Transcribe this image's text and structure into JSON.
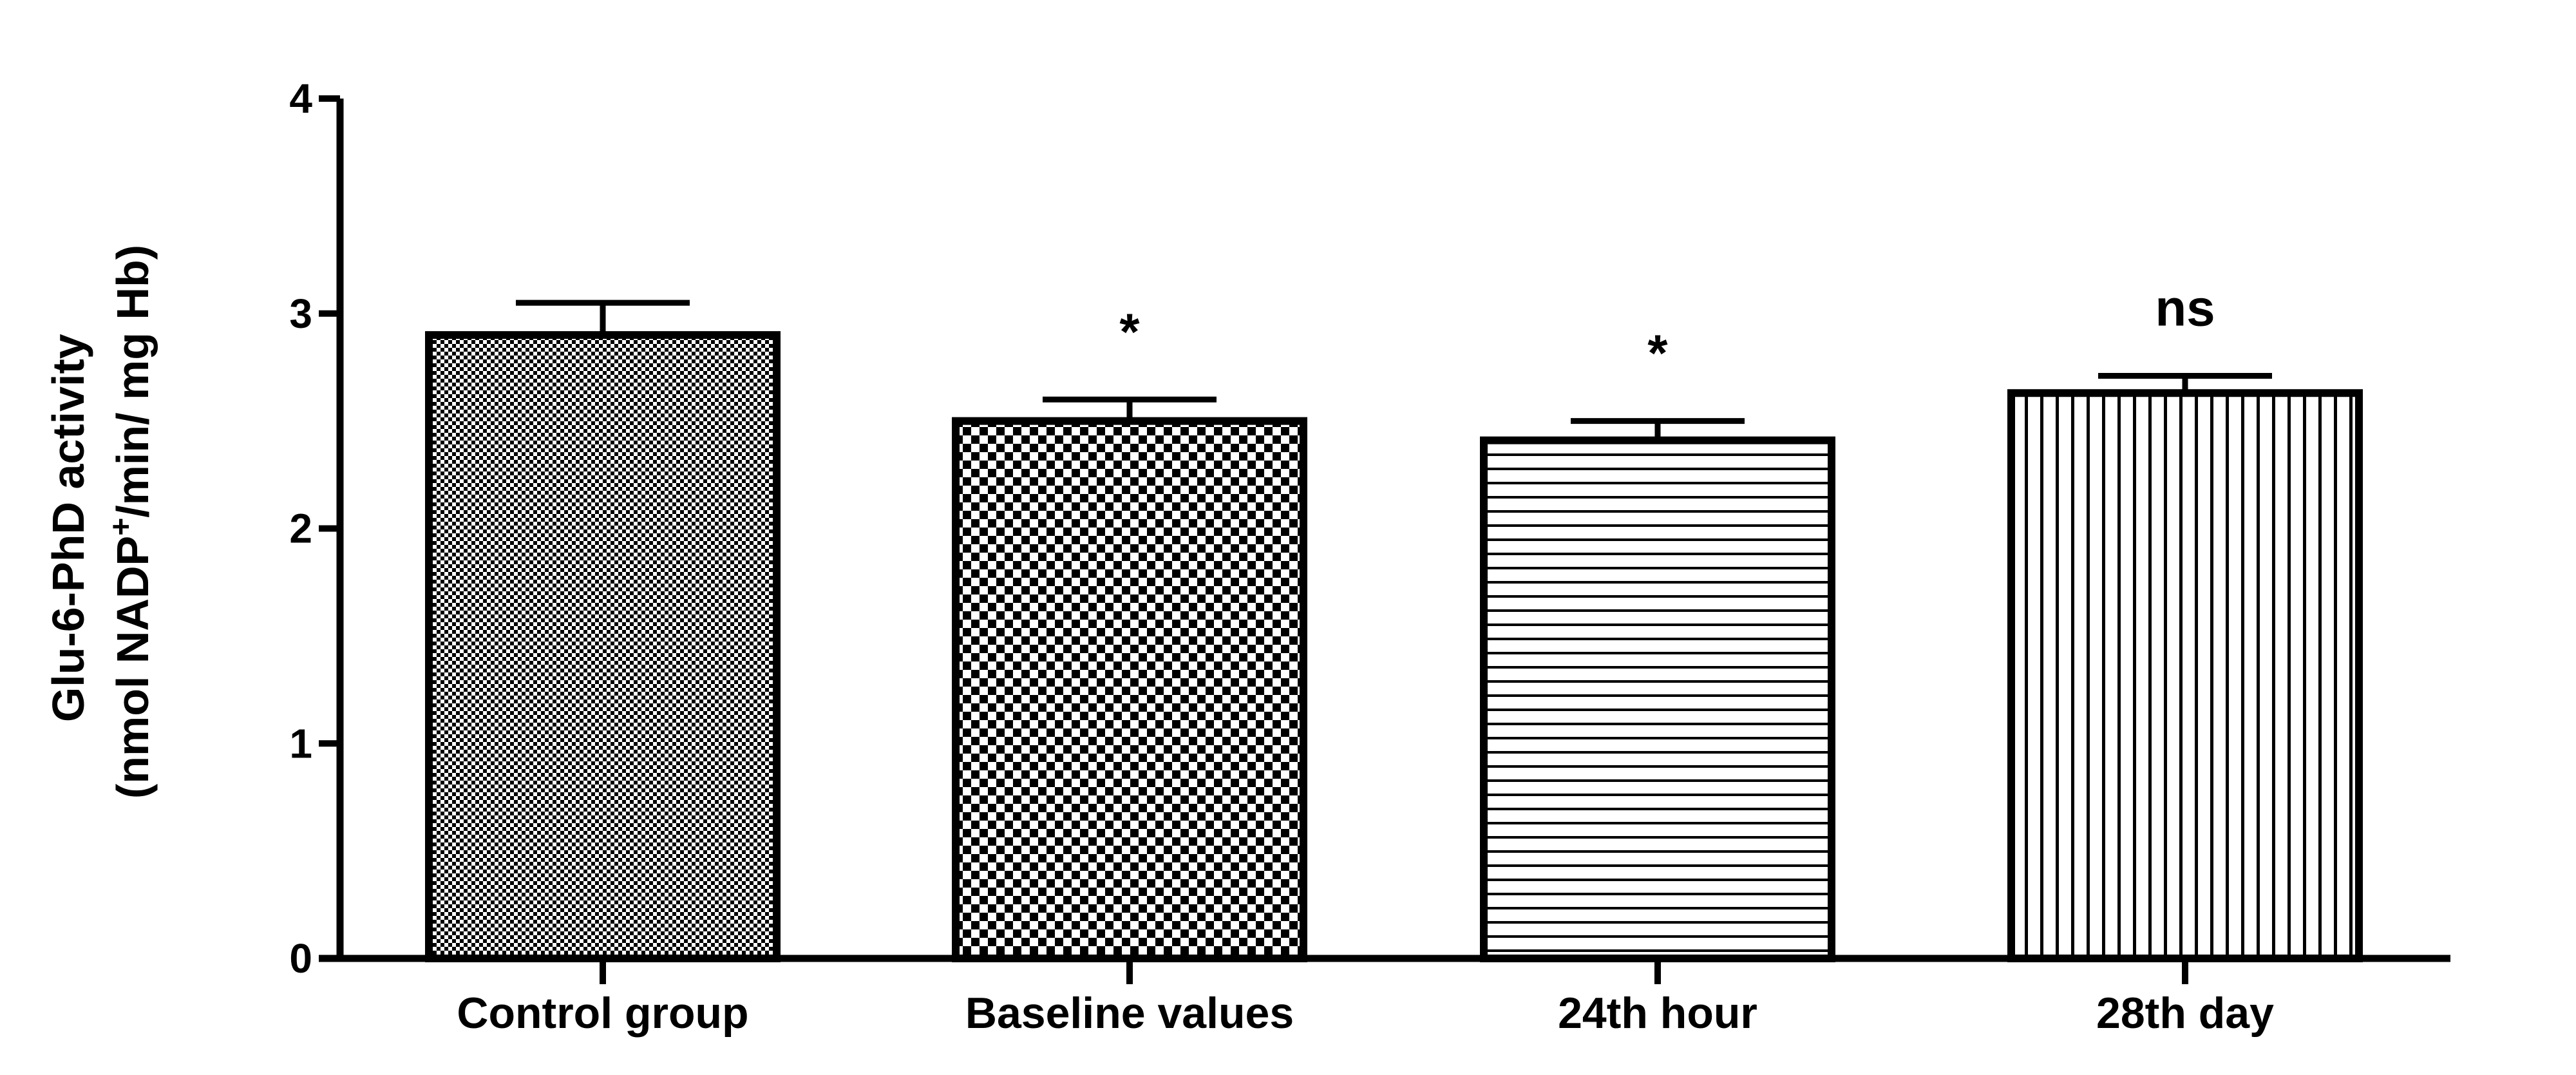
{
  "chart_data": {
    "type": "bar",
    "categories": [
      "Control group",
      "Baseline values",
      "24th hour",
      "28th day"
    ],
    "values": [
      2.9,
      2.5,
      2.41,
      2.63
    ],
    "errors": [
      0.15,
      0.1,
      0.09,
      0.08
    ],
    "annotations": [
      "",
      "*",
      "*",
      "ns"
    ],
    "patterns": [
      "fine-checker",
      "coarse-checker",
      "horizontal-lines",
      "vertical-lines"
    ],
    "ylabel_line1": "Glu-6-PhD activity",
    "ylabel_line2_pre": "(nmol NADP",
    "ylabel_line2_sup": "+",
    "ylabel_line2_post": "/min/ mg Hb)",
    "yticks": [
      "0",
      "1",
      "2",
      "3",
      "4"
    ],
    "ylim": [
      0,
      4
    ],
    "grid": false,
    "colors": {
      "bar_fill": "#ffffff",
      "bar_stroke": "#000000",
      "axis": "#000000"
    }
  }
}
